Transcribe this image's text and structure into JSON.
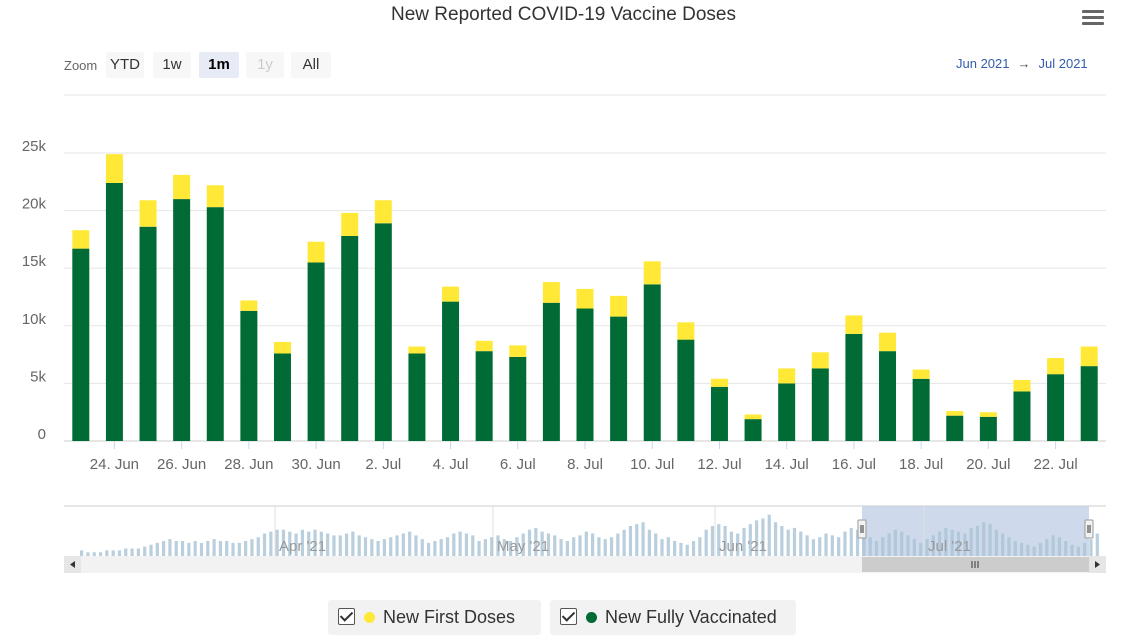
{
  "chart_title": "New Reported COVID-19 Vaccine Doses",
  "toolbar": {
    "zoom_label": "Zoom",
    "buttons": [
      "YTD",
      "1w",
      "1m",
      "1y",
      "All"
    ],
    "active": "1m",
    "disabled": [
      "1y"
    ]
  },
  "range": {
    "from": "Jun 2021",
    "arrow": "→",
    "to": "Jul 2021"
  },
  "colors": {
    "first_doses": "#ffe936",
    "fully_vaccinated": "#006b35",
    "navigator_fill": "#c5d3e8",
    "navigator_bars": "#a9c3d6"
  },
  "menu_icon": "hamburger-icon",
  "navigator": {
    "labels": [
      "Apr '21",
      "May '21",
      "Jun '21",
      "Jul '21"
    ]
  },
  "legend": [
    {
      "name": "New First Doses",
      "color": "#ffe936",
      "checked": true
    },
    {
      "name": "New Fully Vaccinated",
      "color": "#006b35",
      "checked": true
    }
  ],
  "chart_data": {
    "type": "bar",
    "stacked": true,
    "title": "New Reported COVID-19 Vaccine Doses",
    "categories": [
      "23. Jun",
      "24. Jun",
      "25. Jun",
      "26. Jun",
      "27. Jun",
      "28. Jun",
      "29. Jun",
      "30. Jun",
      "1. Jul",
      "2. Jul",
      "3. Jul",
      "4. Jul",
      "5. Jul",
      "6. Jul",
      "7. Jul",
      "8. Jul",
      "9. Jul",
      "10. Jul",
      "11. Jul",
      "12. Jul",
      "13. Jul",
      "14. Jul",
      "15. Jul",
      "16. Jul",
      "17. Jul",
      "18. Jul",
      "19. Jul",
      "20. Jul",
      "21. Jul",
      "22. Jul",
      "23. Jul"
    ],
    "x_tick_labels": [
      "24. Jun",
      "26. Jun",
      "28. Jun",
      "30. Jun",
      "2. Jul",
      "4. Jul",
      "6. Jul",
      "8. Jul",
      "10. Jul",
      "12. Jul",
      "14. Jul",
      "16. Jul",
      "18. Jul",
      "20. Jul",
      "22. Jul"
    ],
    "y_tick_labels": [
      "0",
      "5k",
      "10k",
      "15k",
      "20k",
      "25k"
    ],
    "ylim": [
      0,
      25000
    ],
    "xlabel": "",
    "ylabel": "",
    "grid": true,
    "legend_position": "bottom",
    "series": [
      {
        "name": "New Fully Vaccinated",
        "color": "#006b35",
        "values": [
          16700,
          22400,
          18600,
          21000,
          20300,
          11300,
          7600,
          15500,
          17800,
          18900,
          7600,
          12100,
          7800,
          7300,
          12000,
          11500,
          10800,
          13600,
          8800,
          4700,
          1900,
          5000,
          6300,
          9300,
          7800,
          5400,
          2200,
          2100,
          4300,
          5800,
          6500
        ]
      },
      {
        "name": "New First Doses",
        "color": "#ffe936",
        "values": [
          1600,
          2500,
          2300,
          2100,
          1900,
          900,
          1000,
          1800,
          2000,
          2000,
          600,
          1300,
          900,
          1000,
          1800,
          1700,
          1800,
          2000,
          1500,
          700,
          400,
          1300,
          1400,
          1600,
          1600,
          800,
          400,
          400,
          1000,
          1400,
          1700
        ]
      }
    ]
  },
  "navigator_data": {
    "type": "column",
    "values": [
      3,
      2,
      2,
      2,
      3,
      3,
      3,
      4,
      4,
      4,
      5,
      6,
      7,
      8,
      9,
      8,
      8,
      7,
      8,
      7,
      8,
      9,
      8,
      8,
      7,
      7,
      8,
      9,
      10,
      12,
      13,
      14,
      14,
      13,
      12,
      14,
      13,
      14,
      13,
      12,
      11,
      11,
      12,
      13,
      11,
      10,
      9,
      8,
      9,
      10,
      11,
      12,
      13,
      11,
      9,
      7,
      8,
      9,
      10,
      12,
      13,
      12,
      11,
      8,
      9,
      10,
      11,
      9,
      8,
      10,
      12,
      14,
      15,
      13,
      12,
      11,
      9,
      8,
      10,
      11,
      13,
      12,
      10,
      9,
      10,
      12,
      14,
      16,
      17,
      18,
      14,
      12,
      9,
      10,
      8,
      7,
      6,
      8,
      10,
      14,
      16,
      17,
      16,
      13,
      12,
      15,
      17,
      19,
      20,
      22,
      18,
      16,
      14,
      15,
      13,
      11,
      9,
      10,
      12,
      11,
      10,
      13,
      15,
      14,
      12,
      10,
      8,
      10,
      12,
      14,
      13,
      11,
      9,
      7,
      9,
      11,
      13,
      15,
      14,
      13,
      12,
      15,
      16,
      18,
      17,
      14,
      12,
      10,
      8,
      7,
      6,
      5,
      7,
      9,
      11,
      10,
      8,
      6,
      5,
      7,
      9,
      12
    ]
  }
}
